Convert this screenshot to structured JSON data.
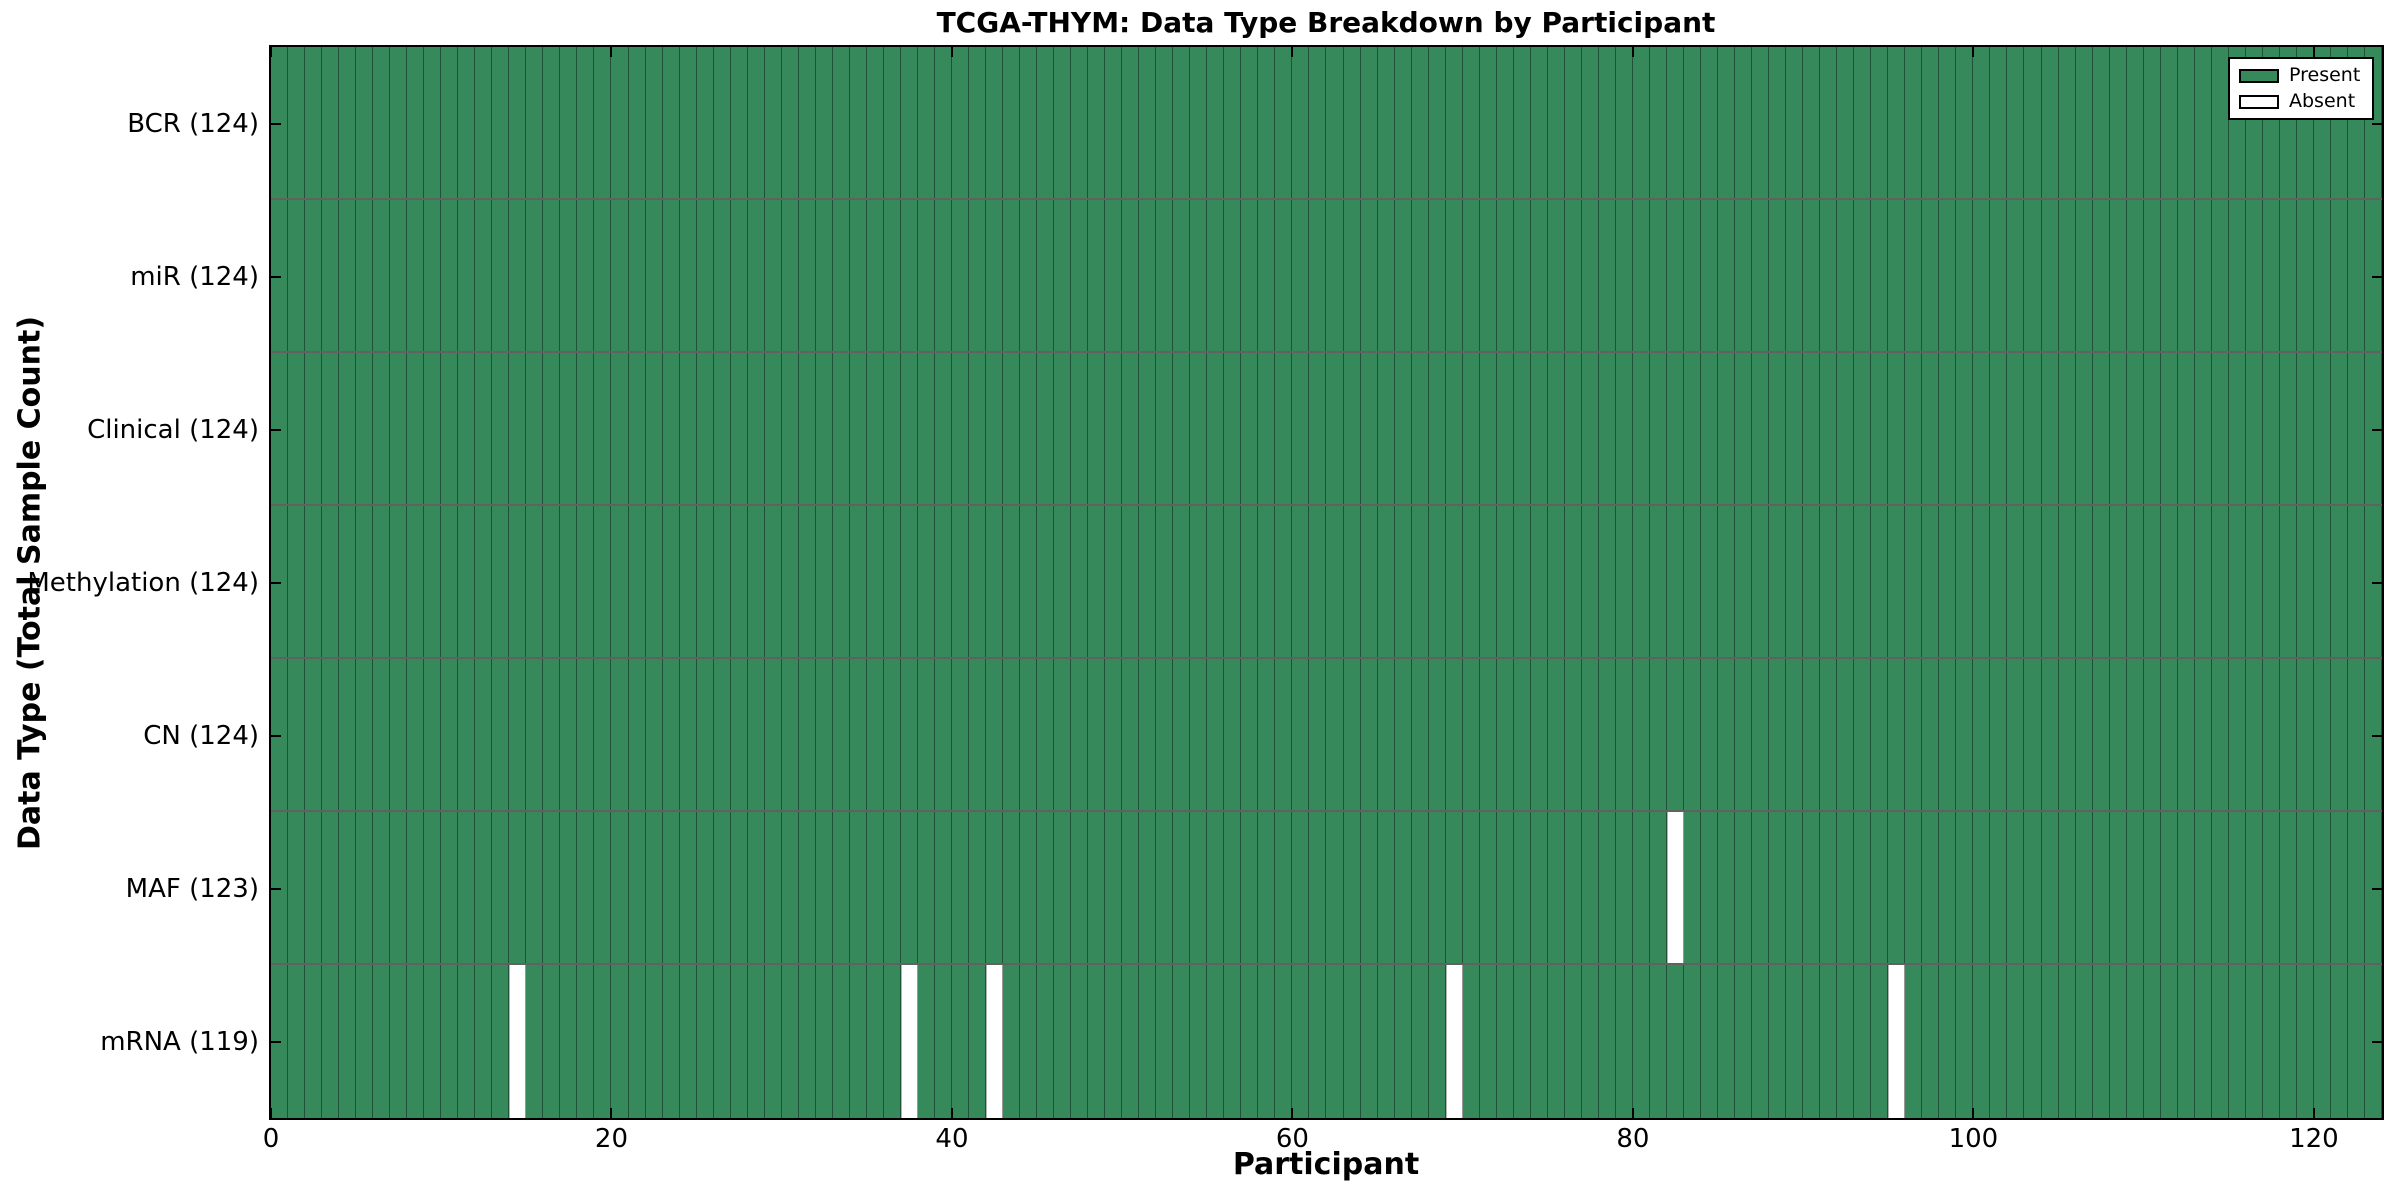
{
  "chart_data": {
    "type": "heatmap",
    "title": "TCGA-THYM: Data Type Breakdown by Participant",
    "xlabel": "Participant",
    "ylabel": "Data Type (Total Sample Count)",
    "xlim": [
      0,
      124
    ],
    "x_ticks": [
      0,
      20,
      40,
      60,
      80,
      100,
      120
    ],
    "n_participants": 124,
    "categories": [
      "BCR (124)",
      "miR (124)",
      "Clinical (124)",
      "Methylation (124)",
      "CN (124)",
      "MAF (123)",
      "mRNA (119)"
    ],
    "rows": [
      {
        "label": "BCR (124)",
        "data_type": "BCR",
        "total_samples": 124,
        "absent_participants": []
      },
      {
        "label": "miR (124)",
        "data_type": "miR",
        "total_samples": 124,
        "absent_participants": []
      },
      {
        "label": "Clinical (124)",
        "data_type": "Clinical",
        "total_samples": 124,
        "absent_participants": []
      },
      {
        "label": "Methylation (124)",
        "data_type": "Methylation",
        "total_samples": 124,
        "absent_participants": []
      },
      {
        "label": "CN (124)",
        "data_type": "CN",
        "total_samples": 124,
        "absent_participants": []
      },
      {
        "label": "MAF (123)",
        "data_type": "MAF",
        "total_samples": 123,
        "absent_participants": [
          82
        ]
      },
      {
        "label": "mRNA (119)",
        "data_type": "mRNA",
        "total_samples": 119,
        "absent_participants": [
          14,
          37,
          42,
          69,
          95
        ]
      }
    ],
    "legend": {
      "position": "upper right",
      "entries": [
        {
          "label": "Present",
          "color": "#35895A"
        },
        {
          "label": "Absent",
          "color": "#FFFFFF"
        }
      ]
    },
    "colors": {
      "present": "#35895A",
      "absent": "#FFFFFF",
      "cell_edge": "rgba(0,0,0,0.40)",
      "row_edge": "rgba(0,0,0,0.62)",
      "axis": "#000000"
    },
    "grid": "per-cell borders, inward axis ticks"
  }
}
